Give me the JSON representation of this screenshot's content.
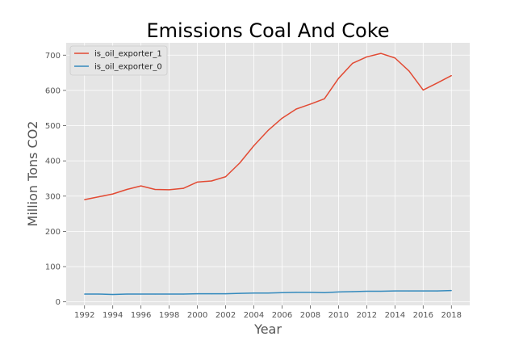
{
  "chart_data": {
    "type": "line",
    "title": "Emissions Coal And Coke",
    "xlabel": "Year",
    "ylabel": "Million Tons CO2",
    "x": [
      1992,
      1993,
      1994,
      1995,
      1996,
      1997,
      1998,
      1999,
      2000,
      2001,
      2002,
      2003,
      2004,
      2005,
      2006,
      2007,
      2008,
      2009,
      2010,
      2011,
      2012,
      2013,
      2014,
      2015,
      2016,
      2017,
      2018
    ],
    "xticks": [
      1992,
      1994,
      1996,
      1998,
      2000,
      2002,
      2004,
      2006,
      2008,
      2010,
      2012,
      2014,
      2016,
      2018
    ],
    "yticks": [
      0,
      100,
      200,
      300,
      400,
      500,
      600,
      700
    ],
    "xlim": [
      1990.7,
      2019.3
    ],
    "ylim": [
      -10,
      735
    ],
    "grid": true,
    "legend_position": "top-left",
    "series": [
      {
        "name": "is_oil_exporter_1",
        "color": "#e24a33",
        "values": [
          290,
          298,
          306,
          319,
          329,
          319,
          318,
          322,
          340,
          343,
          355,
          394,
          443,
          486,
          521,
          547,
          561,
          576,
          634,
          677,
          695,
          705,
          692,
          655,
          601,
          621,
          642
        ]
      },
      {
        "name": "is_oil_exporter_0",
        "color": "#348abd",
        "values": [
          22,
          22,
          21,
          22,
          22,
          22,
          22,
          22,
          23,
          23,
          23,
          24,
          25,
          25,
          26,
          27,
          27,
          26,
          28,
          29,
          30,
          30,
          31,
          31,
          31,
          31,
          32
        ]
      }
    ]
  }
}
